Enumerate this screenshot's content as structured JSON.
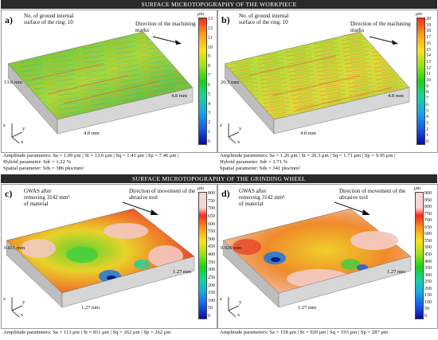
{
  "band_top": "SURFACE MICROTOPOGRAPHY OF THE WORKPIECE",
  "band_bottom": "SURFACE MICROTOPOGRAPHY OF THE GRINDING WHEEL",
  "unit": "μm",
  "axis_letters": {
    "x": "x",
    "y": "y",
    "z": "z"
  },
  "panel_a": {
    "label": "a)",
    "note": "No. of ground internal surface of the ring: 10",
    "direction": "Direction of the machining marks",
    "dim_left": "13.6 mm",
    "dim_right": "4.8 mm",
    "dim_bottom": "4.8 mm",
    "ticks": [
      "13",
      "12",
      "11",
      "10",
      "9",
      "8",
      "7",
      "6",
      "5",
      "4",
      "3",
      "2",
      "1",
      "0"
    ],
    "params_line1": "Amplitude parameters: Sa = 1.09 μm | St = 13.6 μm | Sq = 1.41 μm | Sp = 7.46 μm |",
    "params_line2": "Hybrid parameter: Sdr = 1.22 %",
    "params_line3": "Spatial parameter: Sds = 386 pks/mm²"
  },
  "panel_b": {
    "label": "b)",
    "note": "No. of ground internal surface of the ring: 10",
    "direction": "Direction of the machining marks",
    "dim_left": "20.3 mm",
    "dim_right": "4.8 mm",
    "dim_bottom": "4.8 mm",
    "ticks": [
      "20",
      "19",
      "18",
      "17",
      "16",
      "15",
      "14",
      "13",
      "12",
      "11",
      "10",
      "9",
      "8",
      "7",
      "6",
      "5",
      "4",
      "3",
      "2",
      "1",
      "0"
    ],
    "params_line1": "Amplitude parameters: Sa = 1.26 μm | St = 20.3 μm | Sq = 1.71 μm | Sp = 9.95 μm |",
    "params_line2": "Hybrid parameter: Sdr = 1.71 %",
    "params_line3": "Spatial parameter: Sds = 341 pks/mm²"
  },
  "panel_c": {
    "label": "c)",
    "note": "GWAS after removing 3142 mm³ of material",
    "direction": "Direction of movement of the abrasive tool",
    "dim_left": "0.811 mm",
    "dim_right": "1.27 mm",
    "dim_bottom": "1.27 mm",
    "ticks": [
      "800",
      "750",
      "700",
      "650",
      "600",
      "550",
      "500",
      "450",
      "400",
      "350",
      "300",
      "250",
      "200",
      "150",
      "100",
      "50",
      "0"
    ],
    "params_line1": "Amplitude parameters: Sa = 113 μm | St = 811 μm | Sq = 262 μm | Sp = 262 μm"
  },
  "panel_d": {
    "label": "d)",
    "note": "GWAS after removing 3142 mm³ of material",
    "direction": "Direction of movement of the abrasive tool",
    "dim_left": "0.920 mm",
    "dim_right": "1.27 mm",
    "dim_bottom": "1.27 mm",
    "ticks": [
      "900",
      "850",
      "800",
      "750",
      "700",
      "650",
      "600",
      "550",
      "500",
      "450",
      "400",
      "350",
      "300",
      "250",
      "200",
      "150",
      "100",
      "50",
      "0"
    ],
    "params_line1": "Amplitude parameters: Sa = 158 μm | St = 920 μm | Sq = 193 μm | Sp = 287 μm"
  }
}
